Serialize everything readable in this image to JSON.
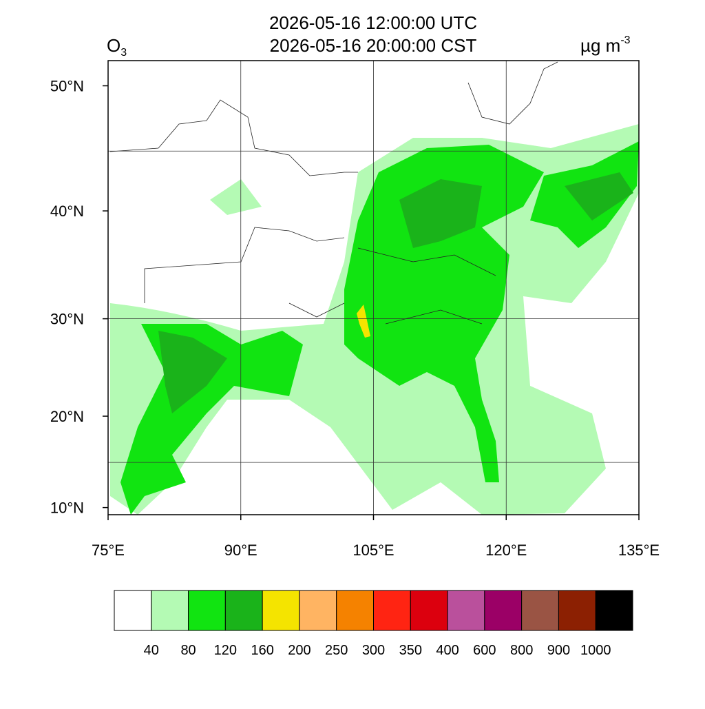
{
  "header": {
    "line1": "2026-05-16 12:00:00 UTC",
    "line2": "2026-05-16 20:00:00 CST",
    "species": {
      "text": "O",
      "subscript": "3"
    },
    "units": {
      "text": "µg m",
      "superscript": "-3"
    }
  },
  "map": {
    "lon_range": [
      75,
      135
    ],
    "lat_range": [
      9.2,
      51.8
    ],
    "lon_ticks": [
      {
        "value": 75,
        "label": "75°E"
      },
      {
        "value": 90,
        "label": "90°E"
      },
      {
        "value": 105,
        "label": "105°E"
      },
      {
        "value": 120,
        "label": "120°E"
      },
      {
        "value": 135,
        "label": "135°E"
      }
    ],
    "lat_ticks": [
      {
        "value": 10,
        "label": "10°N"
      },
      {
        "value": 20,
        "label": "20°N"
      },
      {
        "value": 30,
        "label": "30°N"
      },
      {
        "value": 40,
        "label": "40°N"
      },
      {
        "value": 50,
        "label": "50°N"
      }
    ],
    "grid_lons": [
      90,
      105,
      120
    ],
    "grid_lats": [
      15,
      30,
      45
    ]
  },
  "colorbar": {
    "colors": [
      "#ffffff",
      "#b4fab4",
      "#11e411",
      "#1ab31a",
      "#f4e400",
      "#ffb462",
      "#f58200",
      "#ff2412",
      "#dc000e",
      "#ba509c",
      "#9b0066",
      "#9a5444",
      "#8c2002",
      "#000000"
    ],
    "labels": [
      40,
      80,
      120,
      160,
      200,
      250,
      300,
      350,
      400,
      600,
      800,
      900,
      1000
    ]
  }
}
